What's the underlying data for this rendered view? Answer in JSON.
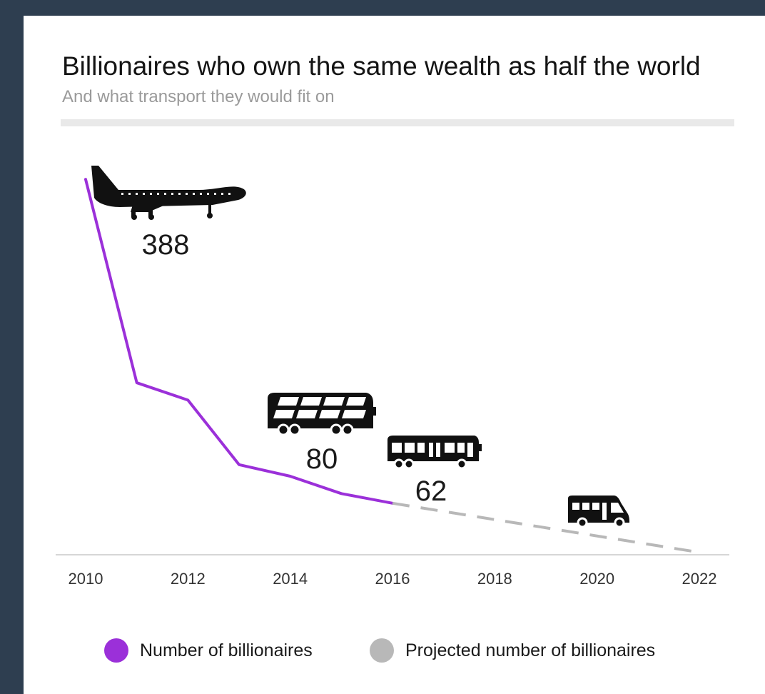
{
  "header": {
    "title": "Billionaires who own the same wealth as half the world",
    "subtitle": "And what transport they would fit on"
  },
  "legend": {
    "actual": "Number of billionaires",
    "projected": "Projected number of billionaires"
  },
  "colors": {
    "actual": "#9b30d9",
    "projected": "#b8b8b8",
    "frame": "#2e3e50"
  },
  "icons": [
    "jumbo-jet-icon",
    "double-decker-bus-icon",
    "single-decker-bus-icon",
    "minibus-icon"
  ],
  "chart_data": {
    "type": "line",
    "title": "Billionaires who own the same wealth as half the world",
    "subtitle": "And what transport they would fit on",
    "xlabel": "",
    "ylabel": "",
    "xlim": [
      2010,
      2022
    ],
    "ylim": [
      0,
      400
    ],
    "x_ticks": [
      "2010",
      "2012",
      "2014",
      "2016",
      "2018",
      "2020",
      "2022"
    ],
    "grid": false,
    "legend_position": "bottom",
    "series": [
      {
        "name": "Number of billionaires",
        "x": [
          2010,
          2011,
          2012,
          2013,
          2014,
          2015,
          2016
        ],
        "values": [
          388,
          177,
          159,
          92,
          80,
          62,
          52
        ]
      },
      {
        "name": "Projected number of billionaires",
        "x": [
          2016,
          2022
        ],
        "values": [
          52,
          1
        ]
      }
    ],
    "annotations": [
      {
        "label": "388",
        "icon": "jumbo-jet-icon"
      },
      {
        "label": "80",
        "icon": "double-decker-bus-icon"
      },
      {
        "label": "62",
        "icon": "single-decker-bus-icon"
      },
      {
        "label": "",
        "icon": "minibus-icon"
      }
    ]
  }
}
